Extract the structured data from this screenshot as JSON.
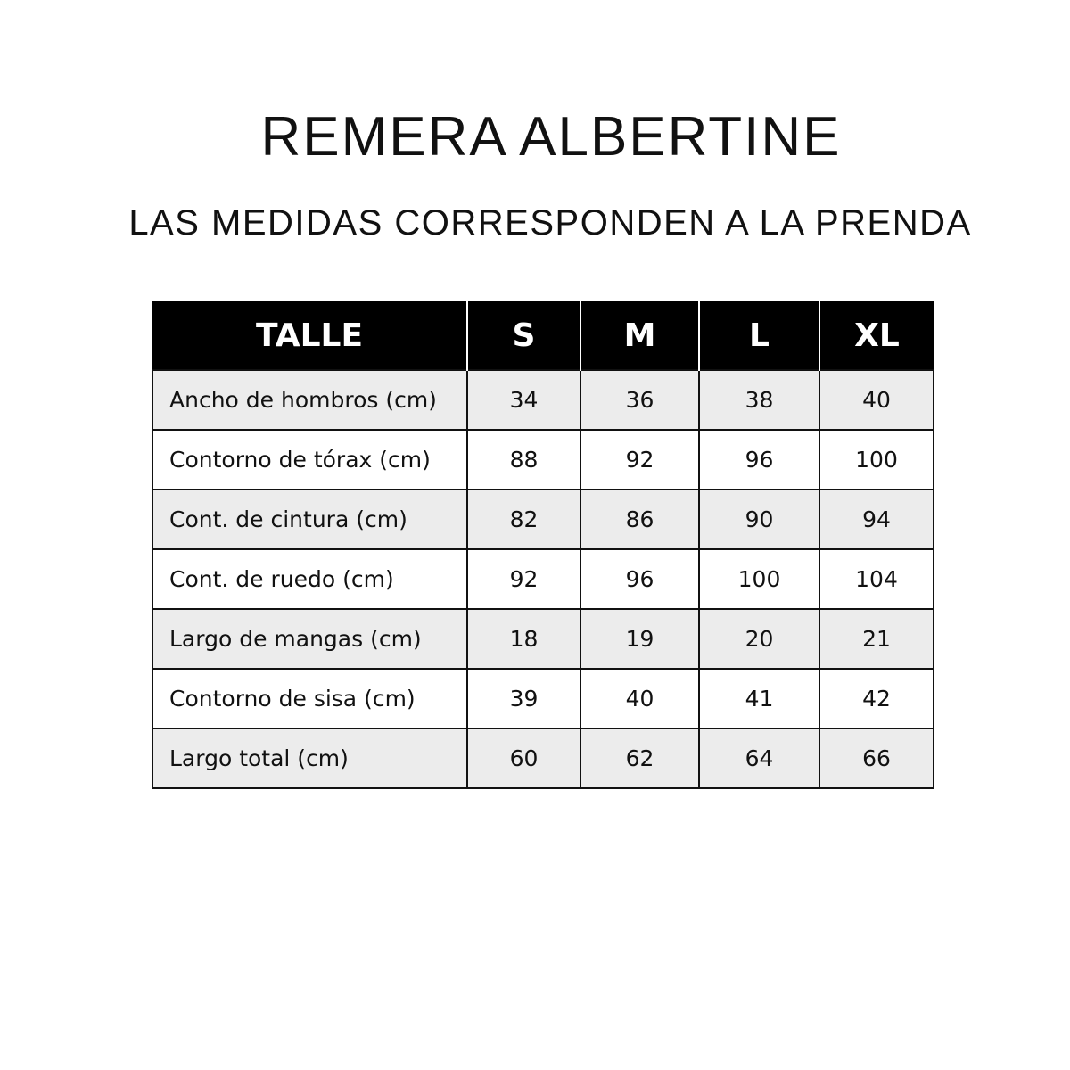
{
  "title": "REMERA ALBERTINE",
  "subtitle": "LAS MEDIDAS CORRESPONDEN A LA PRENDA",
  "table": {
    "headers": [
      "TALLE",
      "S",
      "M",
      "L",
      "XL"
    ],
    "rows": [
      {
        "label": "Ancho de hombros (cm)",
        "values": [
          "34",
          "36",
          "38",
          "40"
        ]
      },
      {
        "label": "Contorno de tórax (cm)",
        "values": [
          "88",
          "92",
          "96",
          "100"
        ]
      },
      {
        "label": "Cont. de cintura (cm)",
        "values": [
          "82",
          "86",
          "90",
          "94"
        ]
      },
      {
        "label": "Cont. de ruedo (cm)",
        "values": [
          "92",
          "96",
          "100",
          "104"
        ]
      },
      {
        "label": "Largo de mangas (cm)",
        "values": [
          "18",
          "19",
          "20",
          "21"
        ]
      },
      {
        "label": "Contorno de sisa (cm)",
        "values": [
          "39",
          "40",
          "41",
          "42"
        ]
      },
      {
        "label": "Largo total (cm)",
        "values": [
          "60",
          "62",
          "64",
          "66"
        ]
      }
    ]
  },
  "colors": {
    "header_bg": "#000000",
    "row_alt_bg": "#ececec"
  }
}
